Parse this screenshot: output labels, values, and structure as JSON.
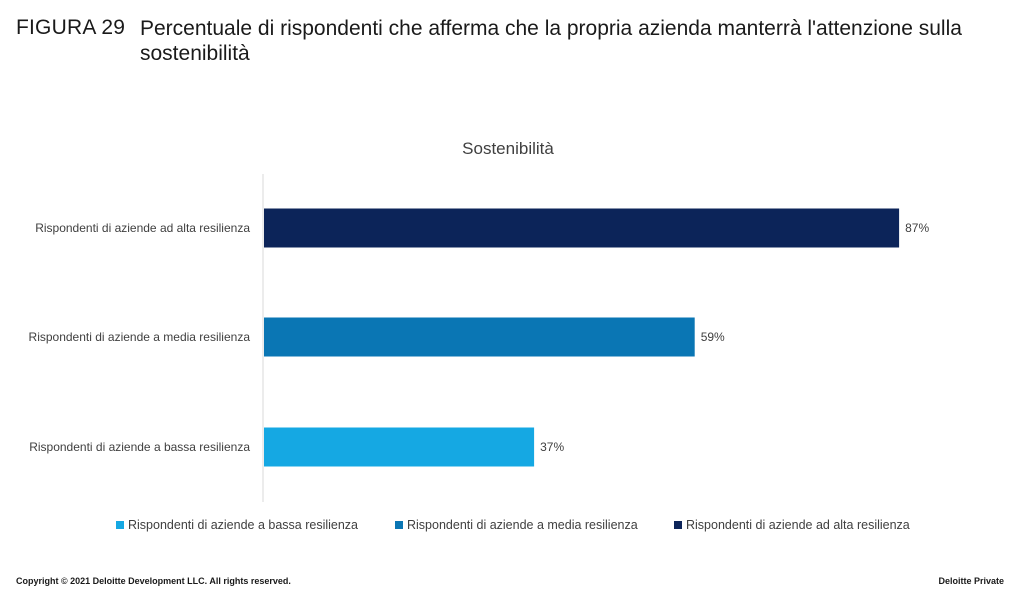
{
  "header": {
    "figure_number": "FIGURA 29",
    "title": "Percentuale di rispondenti che afferma che la propria azienda manterrà l'attenzione sulla sostenibilità"
  },
  "chart_data": {
    "type": "bar",
    "orientation": "horizontal",
    "title": "Sostenibilità",
    "categories": [
      "Rispondenti di aziende ad alta resilienza",
      "Rispondenti di aziende a media resilienza",
      "Rispondenti di aziende a bassa resilienza"
    ],
    "values": [
      87,
      59,
      37
    ],
    "value_labels": [
      "87%",
      "59%",
      "37%"
    ],
    "colors": [
      "#0c2459",
      "#0a76b4",
      "#15a8e3"
    ],
    "xlim": [
      0,
      100
    ],
    "grid": false,
    "legend_position": "bottom",
    "legend": [
      {
        "label": "Rispondenti di aziende a bassa resilienza",
        "color": "#15a8e3"
      },
      {
        "label": "Rispondenti di aziende a media resilienza",
        "color": "#0a76b4"
      },
      {
        "label": "Rispondenti di aziende ad alta resilienza",
        "color": "#0c2459"
      }
    ]
  },
  "footer": {
    "copyright": "Copyright © 2021 Deloitte Development LLC. All rights reserved.",
    "classification": "Deloitte Private"
  }
}
